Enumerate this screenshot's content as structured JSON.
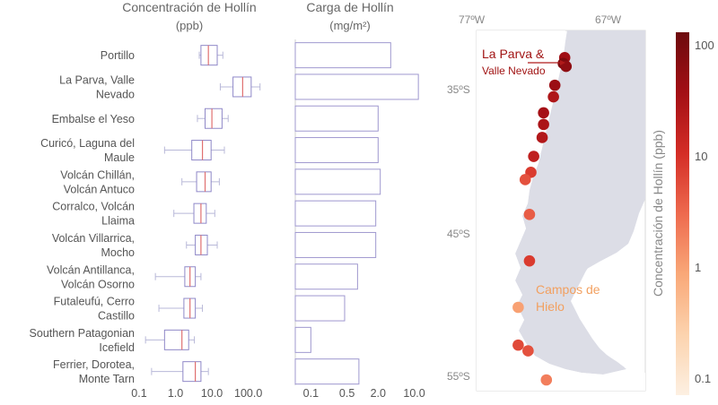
{
  "chart_data": [
    {
      "type": "box",
      "title_line1": "Concentración de Hollín",
      "title_line2": "(ppb)",
      "scale": "log",
      "xlim": [
        0.1,
        300
      ],
      "x_ticks": [
        0.1,
        1.0,
        10.0,
        100.0
      ],
      "x_tick_labels": [
        "0.1",
        "1.0",
        "10.0",
        "100.0"
      ],
      "categories": [
        [
          "Portillo"
        ],
        [
          "La Parva, Valle",
          "Nevado"
        ],
        [
          "Embalse el Yeso"
        ],
        [
          "Curicó, Laguna del",
          "Maule"
        ],
        [
          "Volcán Chillán,",
          "Volcán Antuco"
        ],
        [
          "Corralco, Volcán",
          "Llaima"
        ],
        [
          "Volcán Villarrica,",
          "Mocho"
        ],
        [
          "Volcán Antillanca,",
          "Volcán Osorno"
        ],
        [
          "Futaleufú, Cerro",
          "Castillo"
        ],
        [
          "Southern Patagonian",
          "Icefield"
        ],
        [
          "Ferrier, Dorotea,",
          "Monte Tarn"
        ]
      ],
      "boxes": [
        {
          "min": 4.5,
          "q1": 5.0,
          "median": 8.0,
          "q3": 14,
          "max": 20
        },
        {
          "min": 17,
          "q1": 38,
          "median": 70,
          "q3": 120,
          "max": 210
        },
        {
          "min": 4.0,
          "q1": 6.5,
          "median": 10,
          "q3": 19,
          "max": 28
        },
        {
          "min": 0.5,
          "q1": 2.8,
          "median": 5.5,
          "q3": 9.5,
          "max": 22
        },
        {
          "min": 1.5,
          "q1": 3.8,
          "median": 6.5,
          "q3": 9.5,
          "max": 16
        },
        {
          "min": 0.9,
          "q1": 3.2,
          "median": 5.0,
          "q3": 7.0,
          "max": 12
        },
        {
          "min": 2.0,
          "q1": 3.5,
          "median": 5.0,
          "q3": 7.5,
          "max": 14
        },
        {
          "min": 0.28,
          "q1": 1.8,
          "median": 2.5,
          "q3": 3.5,
          "max": 5.0
        },
        {
          "min": 0.35,
          "q1": 1.7,
          "median": 2.5,
          "q3": 3.5,
          "max": 5.5
        },
        {
          "min": 0.15,
          "q1": 0.5,
          "median": 1.5,
          "q3": 2.3,
          "max": 3.3
        },
        {
          "min": 0.22,
          "q1": 1.6,
          "median": 3.5,
          "q3": 5.0,
          "max": 8.0
        }
      ]
    },
    {
      "type": "bar",
      "title_line1": "Carga de Hollín",
      "title_line2": "(mg/m²)",
      "scale": "log",
      "xlim": [
        0.05,
        14
      ],
      "x_ticks": [
        0.1,
        0.5,
        2.0,
        10.0
      ],
      "x_tick_labels": [
        "0.1",
        "0.5",
        "2.0",
        "10.0"
      ],
      "values": [
        3.5,
        12,
        2.0,
        2.0,
        2.2,
        1.8,
        1.8,
        0.8,
        0.45,
        0.1,
        0.85
      ]
    },
    {
      "type": "map",
      "lon_labels": [
        "77ºW",
        "67ºW"
      ],
      "lat_labels": [
        "35ºS",
        "45ºS",
        "55ºS"
      ],
      "annotation_top_line1": "La Parva &",
      "annotation_top_line2": "Valle Nevado",
      "annotation_bottom_line1": "Campos de",
      "annotation_bottom_line2": "Hielo",
      "points": [
        {
          "lon": -70.3,
          "lat": -32.8,
          "value": 40
        },
        {
          "lon": -70.4,
          "lat": -33.2,
          "value": 90
        },
        {
          "lon": -70.2,
          "lat": -33.4,
          "value": 60
        },
        {
          "lon": -71.0,
          "lat": -34.7,
          "value": 45
        },
        {
          "lon": -71.1,
          "lat": -35.5,
          "value": 28
        },
        {
          "lon": -71.8,
          "lat": -36.6,
          "value": 35
        },
        {
          "lon": -71.8,
          "lat": -37.4,
          "value": 30
        },
        {
          "lon": -71.9,
          "lat": -38.3,
          "value": 25
        },
        {
          "lon": -72.5,
          "lat": -39.6,
          "value": 18
        },
        {
          "lon": -72.7,
          "lat": -40.7,
          "value": 8
        },
        {
          "lon": -73.1,
          "lat": -41.2,
          "value": 5
        },
        {
          "lon": -72.8,
          "lat": -43.6,
          "value": 4
        },
        {
          "lon": -72.8,
          "lat": -46.8,
          "value": 8
        },
        {
          "lon": -73.6,
          "lat": -50.0,
          "value": 1.0
        },
        {
          "lon": -73.6,
          "lat": -52.6,
          "value": 6
        },
        {
          "lon": -72.9,
          "lat": -53.0,
          "value": 5
        },
        {
          "lon": -71.6,
          "lat": -55.0,
          "value": 2
        }
      ]
    },
    {
      "type": "colorbar",
      "label": "Concentración de Hollín (ppb)",
      "scale": "log",
      "range": [
        0.07,
        130
      ],
      "ticks": [
        0.1,
        1,
        10,
        100
      ],
      "tick_labels": [
        "0.1",
        "1",
        "10",
        "100"
      ],
      "colors": [
        "#fdf0e2",
        "#fcd3ae",
        "#f9a878",
        "#ee6a4e",
        "#d42d26",
        "#a30f15",
        "#6d0a0d"
      ]
    }
  ]
}
